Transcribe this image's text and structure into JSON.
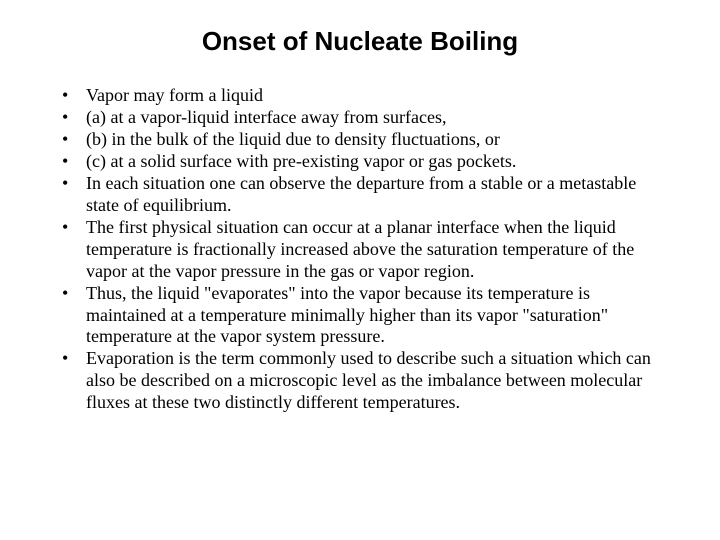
{
  "slide": {
    "title": "Onset of Nucleate Boiling",
    "background_color": "#ffffff",
    "text_color": "#000000",
    "title_font": "Arial",
    "title_fontsize_pt": 26,
    "title_weight": "bold",
    "body_font": "Times New Roman",
    "body_fontsize_pt": 18,
    "bullets": [
      "Vapor may form a liquid",
      "(a) at a vapor-liquid interface away from surfaces,",
      "(b) in the bulk of the liquid due to density fluctuations, or",
      "(c) at a solid surface with pre-existing vapor or gas pockets.",
      "In each situation one can observe the departure from a stable or a metastable state of equilibrium.",
      "The first physical situation can occur at a planar interface when the liquid temperature is fractionally increased above the saturation temperature of the vapor at the vapor pressure in the gas or vapor region.",
      "Thus, the liquid \"evaporates\" into the vapor because its temperature is maintained at a temperature minimally higher than its vapor \"saturation\" temperature at the vapor system pressure.",
      "Evaporation is the term commonly used to describe such a situation which can also be described on a microscopic level as the imbalance between molecular fluxes at these two distinctly different temperatures."
    ]
  }
}
